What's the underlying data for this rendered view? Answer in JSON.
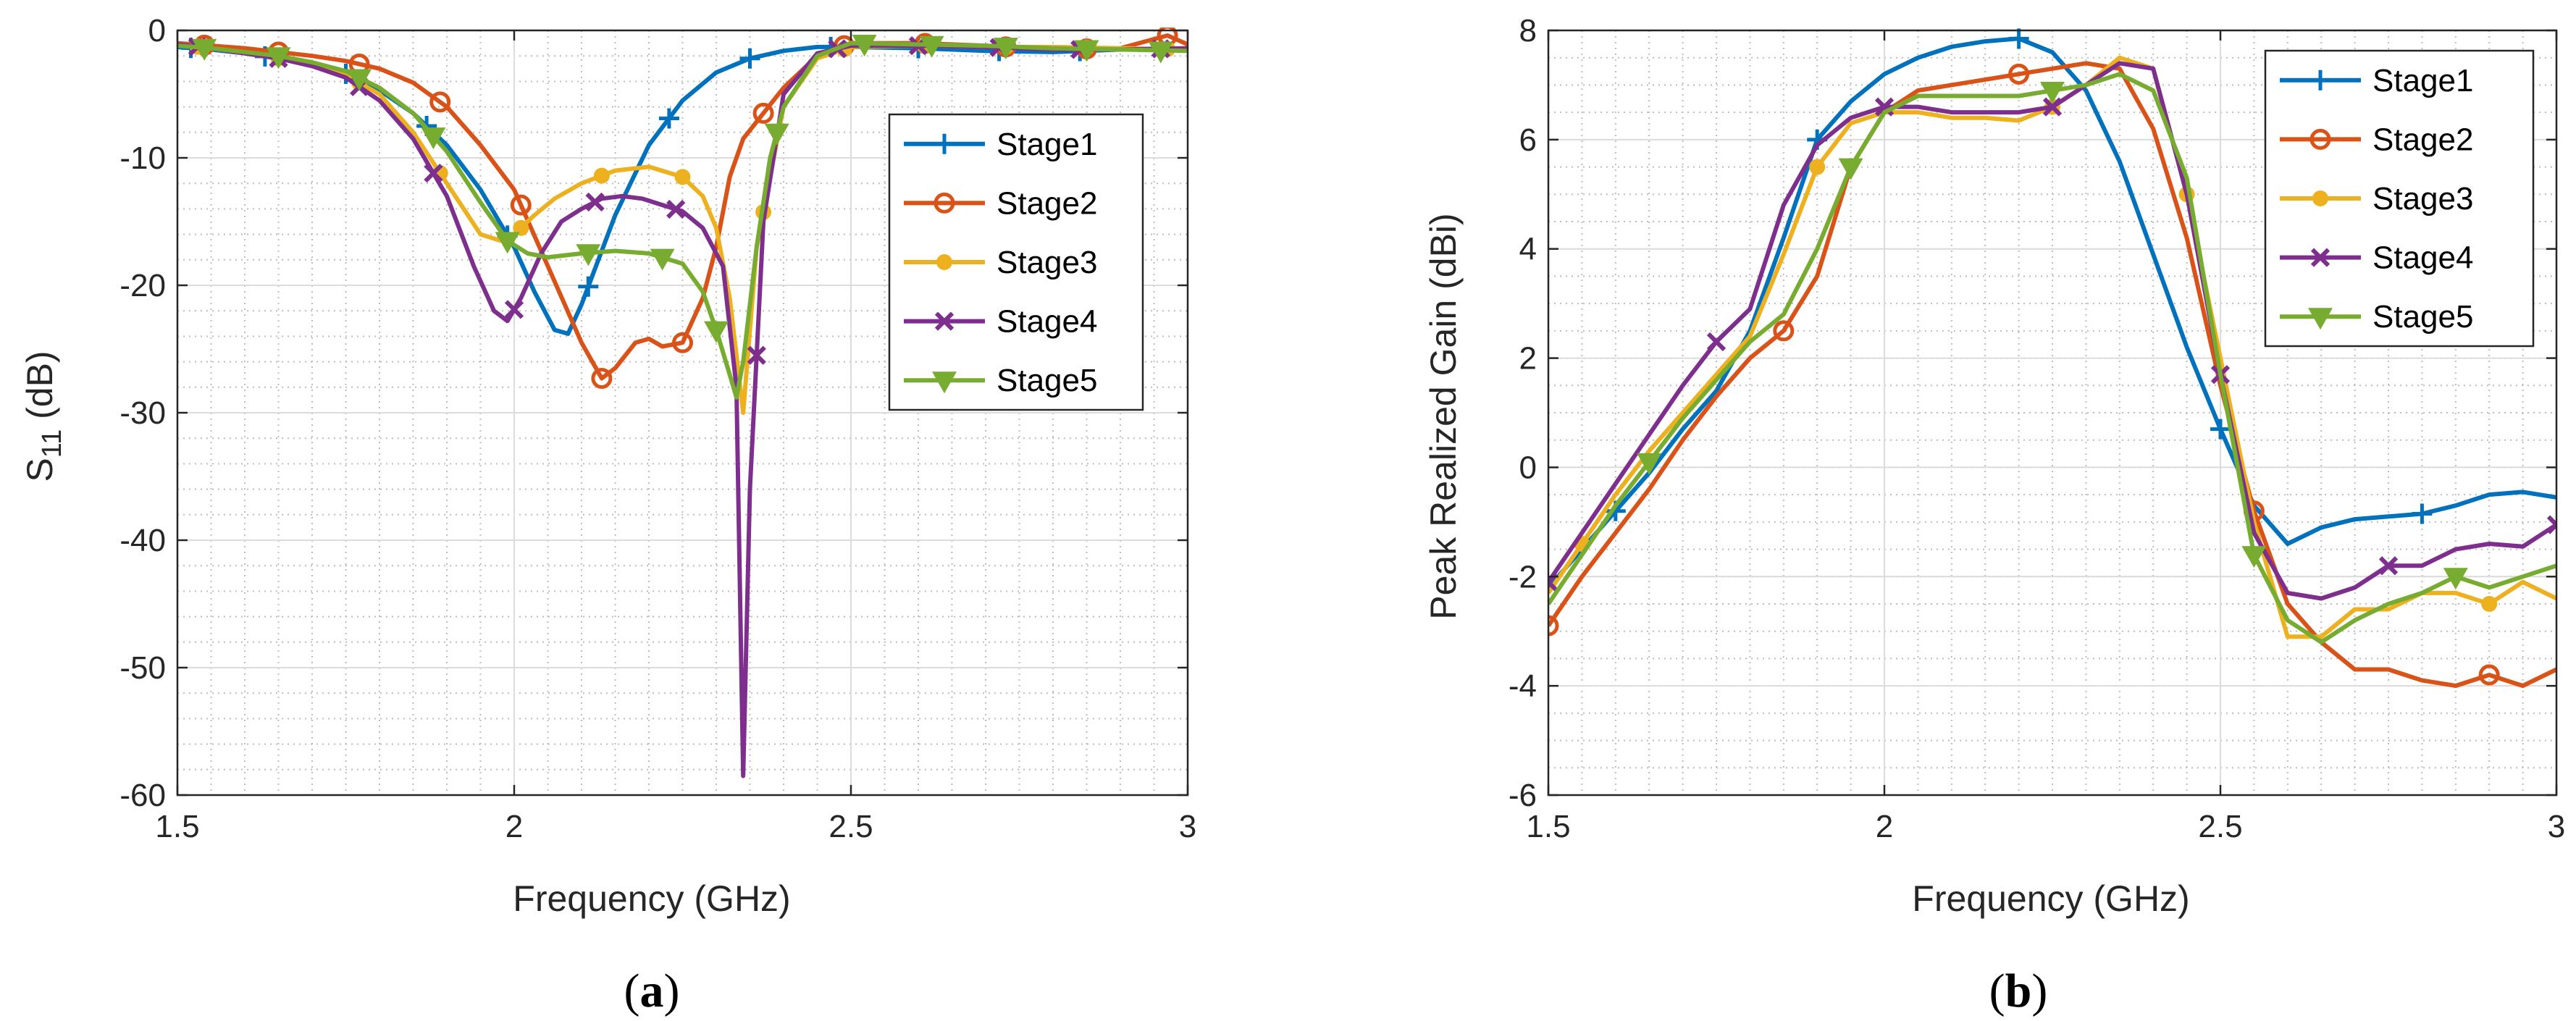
{
  "colors": {
    "stage1": "#0072BD",
    "stage2": "#D95319",
    "stage3": "#EDB120",
    "stage4": "#7E2F8E",
    "stage5": "#77AC30",
    "axis": "#262626",
    "grid_major": "#dcdcdc",
    "grid_minor": "#bdbdbd"
  },
  "chart_data": [
    {
      "id": "a",
      "type": "line",
      "caption_paren_open": "(",
      "caption_letter": "a",
      "caption_paren_close": ")",
      "title": "",
      "xlabel": "Frequency (GHz)",
      "ylabel_main": "S",
      "ylabel_sub": "11",
      "ylabel_unit": " (dB)",
      "xlim": [
        1.5,
        3
      ],
      "ylim": [
        -60,
        0
      ],
      "xticks": [
        1.5,
        2,
        2.5,
        3
      ],
      "xtick_labels": [
        "1.5",
        "2",
        "2.5",
        "3"
      ],
      "yticks": [
        -60,
        -50,
        -40,
        -30,
        -20,
        -10,
        0
      ],
      "ytick_labels": [
        "-60",
        "-50",
        "-40",
        "-30",
        "-20",
        "-10",
        "0"
      ],
      "xminor": 0.05,
      "yminor": 2,
      "grid": true,
      "legend_position": "right",
      "series": [
        {
          "name": "Stage1",
          "marker": "plus",
          "x": [
            1.5,
            1.55,
            1.6,
            1.65,
            1.7,
            1.75,
            1.8,
            1.85,
            1.9,
            1.95,
            2.0,
            2.03,
            2.06,
            2.08,
            2.1,
            2.15,
            2.2,
            2.25,
            2.3,
            2.35,
            2.4,
            2.45,
            2.5,
            2.6,
            2.7,
            2.8,
            2.9,
            3.0
          ],
          "y": [
            -1.3,
            -1.5,
            -1.8,
            -2.2,
            -2.7,
            -3.4,
            -4.7,
            -6.5,
            -9,
            -12.5,
            -17,
            -20.5,
            -23.5,
            -23.8,
            -21.5,
            -14.5,
            -9,
            -5.5,
            -3.3,
            -2.2,
            -1.6,
            -1.3,
            -1.3,
            -1.4,
            -1.6,
            -1.7,
            -1.5,
            -1.5
          ],
          "marker_x": [
            1.52,
            1.63,
            1.75,
            1.87,
            1.99,
            2.11,
            2.23,
            2.35,
            2.47,
            2.6,
            2.72,
            2.84,
            2.96
          ]
        },
        {
          "name": "Stage2",
          "marker": "circle",
          "x": [
            1.5,
            1.55,
            1.6,
            1.65,
            1.7,
            1.75,
            1.8,
            1.85,
            1.9,
            1.95,
            2.0,
            2.05,
            2.1,
            2.13,
            2.15,
            2.18,
            2.2,
            2.22,
            2.25,
            2.28,
            2.3,
            2.32,
            2.34,
            2.37,
            2.4,
            2.45,
            2.5,
            2.6,
            2.7,
            2.8,
            2.9,
            2.97,
            3.0
          ],
          "y": [
            -1,
            -1.2,
            -1.4,
            -1.7,
            -2,
            -2.4,
            -3,
            -4.1,
            -6,
            -9,
            -12.5,
            -18.5,
            -24.5,
            -27.3,
            -26.5,
            -24.5,
            -24.2,
            -24.8,
            -24.5,
            -21,
            -17,
            -11.5,
            -8.5,
            -6.5,
            -4.5,
            -2,
            -1,
            -1,
            -1.2,
            -1.5,
            -1.4,
            -0.4,
            -1.1
          ],
          "marker_x": [
            1.54,
            1.65,
            1.77,
            1.89,
            2.01,
            2.13,
            2.25,
            2.37,
            2.49,
            2.61,
            2.73,
            2.85,
            2.97
          ]
        },
        {
          "name": "Stage3",
          "marker": "dot",
          "x": [
            1.5,
            1.55,
            1.6,
            1.65,
            1.7,
            1.75,
            1.8,
            1.85,
            1.9,
            1.95,
            1.98,
            2.0,
            2.03,
            2.06,
            2.1,
            2.15,
            2.2,
            2.25,
            2.28,
            2.3,
            2.32,
            2.34,
            2.36,
            2.4,
            2.45,
            2.5,
            2.6,
            2.7,
            2.8,
            2.9,
            3.0
          ],
          "y": [
            -1.1,
            -1.4,
            -1.8,
            -2.2,
            -2.7,
            -3.5,
            -5,
            -8,
            -12,
            -16,
            -16.5,
            -16,
            -14.5,
            -13.2,
            -12,
            -11,
            -10.7,
            -11.5,
            -13,
            -15.5,
            -21,
            -30,
            -17,
            -6,
            -2.2,
            -1.3,
            -1.2,
            -1.3,
            -1.3,
            -1.4,
            -1.5
          ],
          "marker_x": [
            1.53,
            1.65,
            1.77,
            1.89,
            2.01,
            2.13,
            2.25,
            2.37,
            2.49,
            2.61,
            2.73,
            2.85,
            2.97
          ]
        },
        {
          "name": "Stage4",
          "marker": "x",
          "x": [
            1.5,
            1.55,
            1.6,
            1.65,
            1.7,
            1.75,
            1.8,
            1.85,
            1.9,
            1.94,
            1.97,
            1.99,
            2.01,
            2.04,
            2.07,
            2.1,
            2.13,
            2.16,
            2.19,
            2.22,
            2.25,
            2.28,
            2.31,
            2.33,
            2.34,
            2.35,
            2.37,
            2.4,
            2.45,
            2.5,
            2.6,
            2.7,
            2.8,
            2.9,
            3.0
          ],
          "y": [
            -1.1,
            -1.4,
            -1.8,
            -2.2,
            -2.8,
            -3.7,
            -5.5,
            -8.5,
            -13,
            -18.5,
            -22,
            -22.8,
            -21,
            -17.5,
            -15,
            -14,
            -13.2,
            -13,
            -13.2,
            -13.7,
            -14.2,
            -15.5,
            -18.5,
            -28,
            -58.5,
            -36,
            -15,
            -5,
            -1.8,
            -1.2,
            -1.2,
            -1.3,
            -1.5,
            -1.5,
            -1.4
          ],
          "marker_x": [
            1.53,
            1.65,
            1.77,
            1.88,
            2.0,
            2.12,
            2.24,
            2.36,
            2.48,
            2.6,
            2.72,
            2.84,
            2.96
          ]
        },
        {
          "name": "Stage5",
          "marker": "triangle",
          "x": [
            1.5,
            1.55,
            1.6,
            1.65,
            1.7,
            1.75,
            1.8,
            1.85,
            1.9,
            1.95,
            1.99,
            2.02,
            2.05,
            2.1,
            2.15,
            2.2,
            2.25,
            2.28,
            2.3,
            2.32,
            2.33,
            2.34,
            2.36,
            2.38,
            2.4,
            2.45,
            2.5,
            2.6,
            2.7,
            2.8,
            2.9,
            3.0
          ],
          "y": [
            -1.2,
            -1.4,
            -1.7,
            -2,
            -2.5,
            -3.2,
            -4.5,
            -6.5,
            -9.5,
            -13.5,
            -16.5,
            -17.5,
            -17.8,
            -17.5,
            -17.3,
            -17.5,
            -18.3,
            -20.5,
            -23.5,
            -27,
            -28.8,
            -26,
            -17,
            -10,
            -6,
            -2,
            -1,
            -1.1,
            -1.2,
            -1.4,
            -1.5,
            -1.6
          ],
          "marker_x": [
            1.54,
            1.65,
            1.77,
            1.88,
            1.99,
            2.11,
            2.22,
            2.3,
            2.39,
            2.52,
            2.62,
            2.73,
            2.85,
            2.96
          ]
        }
      ],
      "legend": [
        "Stage1",
        "Stage2",
        "Stage3",
        "Stage4",
        "Stage5"
      ]
    },
    {
      "id": "b",
      "type": "line",
      "caption_paren_open": "(",
      "caption_letter": "b",
      "caption_paren_close": ")",
      "title": "",
      "xlabel": "Frequency (GHz)",
      "ylabel": "Peak Realized Gain (dBi)",
      "xlim": [
        1.5,
        3
      ],
      "ylim": [
        -6,
        8
      ],
      "xticks": [
        1.5,
        2,
        2.5,
        3
      ],
      "xtick_labels": [
        "1.5",
        "2",
        "2.5",
        "3"
      ],
      "yticks": [
        -6,
        -4,
        -2,
        0,
        2,
        4,
        6,
        8
      ],
      "ytick_labels": [
        "-6",
        "-4",
        "-2",
        "0",
        "2",
        "4",
        "6",
        "8"
      ],
      "xminor": 0.05,
      "yminor": 0.5,
      "grid": true,
      "legend_position": "top-right",
      "series": [
        {
          "name": "Stage1",
          "marker": "plus",
          "x": [
            1.5,
            1.55,
            1.6,
            1.65,
            1.7,
            1.75,
            1.8,
            1.85,
            1.9,
            1.95,
            2.0,
            2.05,
            2.1,
            2.15,
            2.2,
            2.25,
            2.3,
            2.35,
            2.4,
            2.45,
            2.5,
            2.55,
            2.6,
            2.65,
            2.7,
            2.75,
            2.8,
            2.85,
            2.9,
            2.95,
            3.0
          ],
          "y": [
            -2.2,
            -1.5,
            -0.8,
            -0.1,
            0.7,
            1.4,
            2.5,
            4.2,
            6.0,
            6.7,
            7.2,
            7.5,
            7.7,
            7.8,
            7.85,
            7.6,
            6.9,
            5.6,
            3.9,
            2.2,
            0.7,
            -0.7,
            -1.4,
            -1.1,
            -0.95,
            -0.9,
            -0.85,
            -0.7,
            -0.5,
            -0.45,
            -0.55
          ],
          "marker_x": [
            1.6,
            1.9,
            2.2,
            2.5,
            2.8
          ]
        },
        {
          "name": "Stage2",
          "marker": "circle",
          "x": [
            1.5,
            1.55,
            1.6,
            1.65,
            1.7,
            1.75,
            1.8,
            1.85,
            1.9,
            1.95,
            2.0,
            2.05,
            2.1,
            2.15,
            2.2,
            2.25,
            2.3,
            2.35,
            2.4,
            2.45,
            2.5,
            2.55,
            2.6,
            2.65,
            2.7,
            2.75,
            2.8,
            2.85,
            2.9,
            2.95,
            3.0
          ],
          "y": [
            -2.9,
            -2.0,
            -1.2,
            -0.4,
            0.5,
            1.3,
            2.0,
            2.5,
            3.5,
            5.5,
            6.5,
            6.9,
            7.0,
            7.1,
            7.2,
            7.3,
            7.4,
            7.3,
            6.2,
            4.2,
            1.5,
            -0.8,
            -2.5,
            -3.2,
            -3.7,
            -3.7,
            -3.9,
            -4.0,
            -3.8,
            -4.0,
            -3.7
          ],
          "marker_x": [
            1.5,
            1.85,
            2.2,
            2.55,
            2.9
          ]
        },
        {
          "name": "Stage3",
          "marker": "dot",
          "x": [
            1.5,
            1.55,
            1.6,
            1.65,
            1.7,
            1.75,
            1.8,
            1.85,
            1.9,
            1.95,
            2.0,
            2.05,
            2.1,
            2.15,
            2.2,
            2.25,
            2.3,
            2.35,
            2.4,
            2.45,
            2.5,
            2.55,
            2.6,
            2.65,
            2.7,
            2.75,
            2.8,
            2.85,
            2.9,
            2.95,
            3.0
          ],
          "y": [
            -2.3,
            -1.4,
            -0.5,
            0.3,
            1.0,
            1.7,
            2.4,
            3.9,
            5.5,
            6.3,
            6.5,
            6.5,
            6.4,
            6.4,
            6.35,
            6.6,
            7.0,
            7.5,
            7.3,
            5.0,
            2.0,
            -1.0,
            -3.1,
            -3.1,
            -2.6,
            -2.6,
            -2.3,
            -2.3,
            -2.5,
            -2.1,
            -2.4
          ],
          "marker_x": [
            1.55,
            1.9,
            2.25,
            2.45,
            2.9
          ]
        },
        {
          "name": "Stage4",
          "marker": "x",
          "x": [
            1.5,
            1.55,
            1.6,
            1.65,
            1.7,
            1.75,
            1.8,
            1.85,
            1.9,
            1.95,
            2.0,
            2.05,
            2.1,
            2.15,
            2.2,
            2.25,
            2.3,
            2.35,
            2.4,
            2.45,
            2.5,
            2.55,
            2.6,
            2.65,
            2.7,
            2.75,
            2.8,
            2.85,
            2.9,
            2.95,
            3.0
          ],
          "y": [
            -2.1,
            -1.2,
            -0.3,
            0.6,
            1.5,
            2.3,
            2.9,
            4.8,
            5.9,
            6.4,
            6.6,
            6.6,
            6.5,
            6.5,
            6.5,
            6.6,
            7.0,
            7.4,
            7.3,
            5.0,
            1.7,
            -1.2,
            -2.3,
            -2.4,
            -2.2,
            -1.8,
            -1.8,
            -1.5,
            -1.4,
            -1.45,
            -1.05
          ],
          "marker_x": [
            1.5,
            1.75,
            2.0,
            2.25,
            2.5,
            2.75,
            3.0
          ]
        },
        {
          "name": "Stage5",
          "marker": "triangle",
          "x": [
            1.5,
            1.55,
            1.6,
            1.65,
            1.7,
            1.75,
            1.8,
            1.85,
            1.9,
            1.95,
            2.0,
            2.05,
            2.1,
            2.15,
            2.2,
            2.25,
            2.3,
            2.35,
            2.4,
            2.45,
            2.5,
            2.55,
            2.6,
            2.65,
            2.7,
            2.75,
            2.8,
            2.85,
            2.9,
            2.95,
            3.0
          ],
          "y": [
            -2.5,
            -1.6,
            -0.7,
            0.1,
            0.9,
            1.6,
            2.3,
            2.8,
            4.0,
            5.5,
            6.5,
            6.8,
            6.8,
            6.8,
            6.8,
            6.9,
            7.0,
            7.2,
            6.9,
            5.3,
            1.7,
            -1.6,
            -2.8,
            -3.2,
            -2.8,
            -2.5,
            -2.3,
            -2.0,
            -2.2,
            -2.0,
            -1.8
          ],
          "marker_x": [
            1.65,
            1.95,
            2.25,
            2.55,
            2.85
          ]
        }
      ],
      "legend": [
        "Stage1",
        "Stage2",
        "Stage3",
        "Stage4",
        "Stage5"
      ]
    }
  ]
}
